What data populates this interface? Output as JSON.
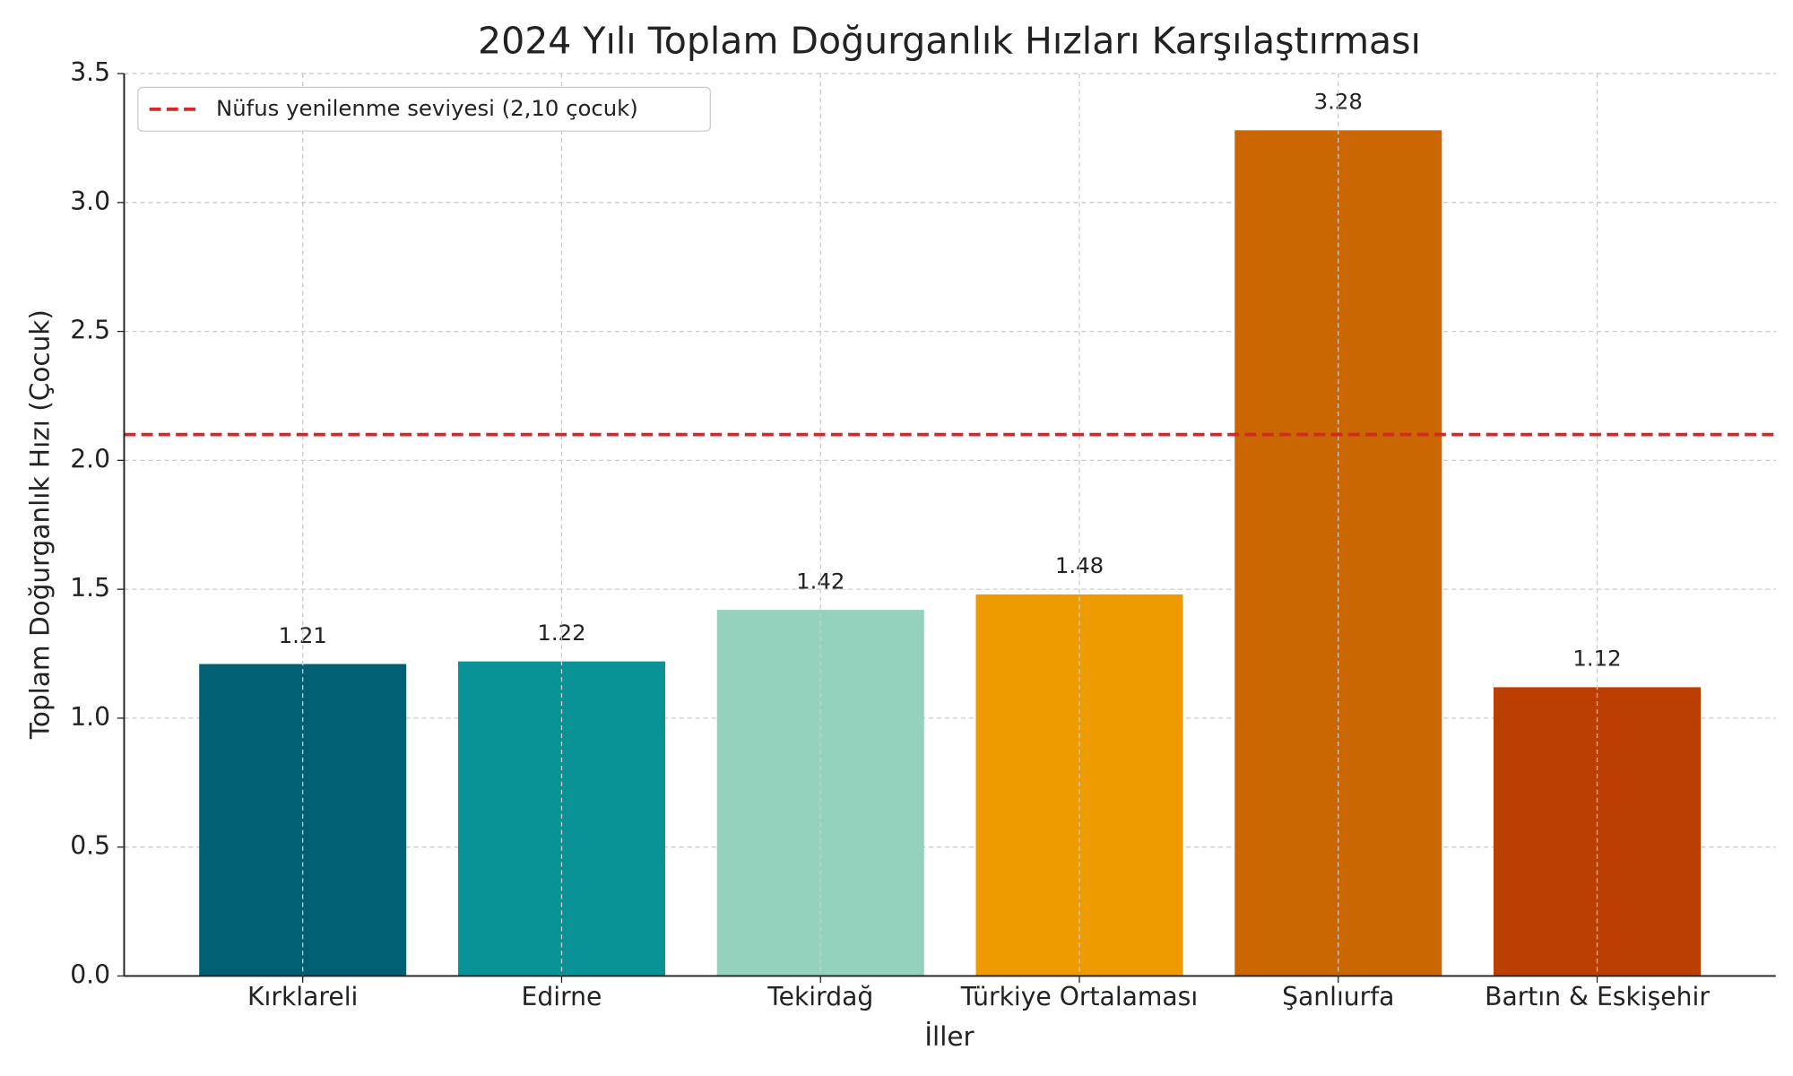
{
  "chart_data": {
    "type": "bar",
    "title": "2024 Yılı Toplam Doğurganlık Hızları Karşılaştırması",
    "xlabel": "İller",
    "ylabel": "Toplam Doğurganlık Hızı (Çocuk)",
    "categories": [
      "Kırklareli",
      "Edirne",
      "Tekirdağ",
      "Türkiye Ortalaması",
      "Şanlıurfa",
      "Bartın & Eskişehir"
    ],
    "values": [
      1.21,
      1.22,
      1.42,
      1.48,
      3.28,
      1.12
    ],
    "colors": [
      "#005f73",
      "#0a9396",
      "#94d2bd",
      "#ee9b00",
      "#ca6702",
      "#bb3e03"
    ],
    "ylim": [
      0,
      3.5
    ],
    "yticks": [
      {
        "value": 0,
        "label": "0.0"
      },
      0.5,
      {
        "value": 1,
        "label": "1.0"
      },
      1.5,
      {
        "value": 2,
        "label": "2.0"
      },
      2.5,
      {
        "value": 3,
        "label": "3.0"
      },
      3.5
    ],
    "grid": true,
    "reference_line": {
      "value": 2.1,
      "name": "Nüfus yenilenme seviyesi (2,10 çocuk)",
      "color": "#d62728"
    },
    "legend": "upper left"
  }
}
